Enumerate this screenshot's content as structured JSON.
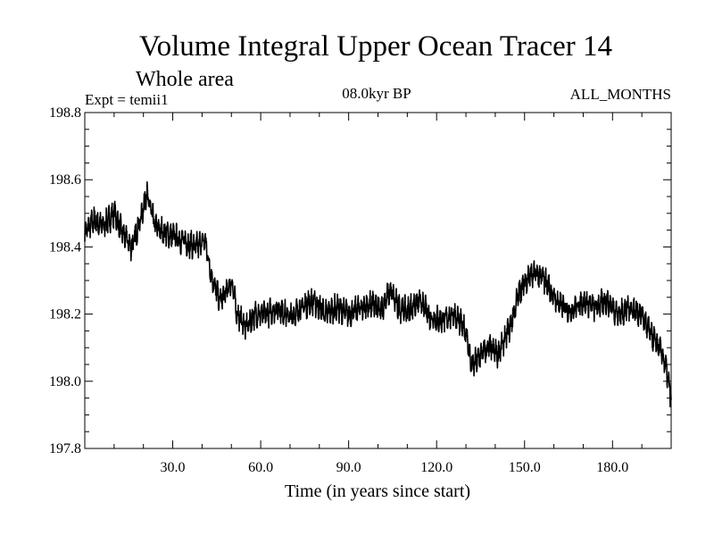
{
  "chart_data": {
    "type": "line",
    "title": "Volume Integral Upper Ocean Tracer 14",
    "subtitle": "Whole area",
    "experiment": "Expt = temii1",
    "period": "08.0kyr BP",
    "months": "ALL_MONTHS",
    "xlabel": "Time (in years since start)",
    "ylabel": "",
    "xlim": [
      0,
      200
    ],
    "ylim": [
      197.8,
      198.8
    ],
    "xticks": [
      {
        "value": 30,
        "label": "30.0"
      },
      {
        "value": 60,
        "label": "60.0"
      },
      {
        "value": 90,
        "label": "90.0"
      },
      {
        "value": 120,
        "label": "120.0"
      },
      {
        "value": 150,
        "label": "150.0"
      },
      {
        "value": 180,
        "label": "180.0"
      }
    ],
    "yticks": [
      {
        "value": 197.8,
        "label": "197.8"
      },
      {
        "value": 198.0,
        "label": "198.0"
      },
      {
        "value": 198.2,
        "label": "198.2"
      },
      {
        "value": 198.4,
        "label": "198.4"
      },
      {
        "value": 198.6,
        "label": "198.6"
      },
      {
        "value": 198.8,
        "label": "198.8"
      }
    ],
    "series": [
      {
        "name": "Tracer 14",
        "color": "#000000",
        "noise_amplitude": 0.035,
        "samples_per_year": 12,
        "x": [
          0,
          3,
          6,
          10,
          13,
          16,
          19,
          21,
          24,
          28,
          33,
          38,
          41,
          43,
          46,
          48,
          50,
          52,
          55,
          58,
          62,
          66,
          70,
          74,
          78,
          82,
          86,
          90,
          94,
          98,
          101,
          104,
          107,
          110,
          114,
          118,
          122,
          126,
          130,
          132,
          135,
          138,
          141,
          145,
          148,
          151,
          154,
          157,
          160,
          163,
          166,
          170,
          174,
          178,
          182,
          186,
          190,
          193,
          196,
          198,
          200
        ],
        "y": [
          198.44,
          198.48,
          198.46,
          198.5,
          198.44,
          198.4,
          198.48,
          198.56,
          198.46,
          198.44,
          198.42,
          198.4,
          198.42,
          198.32,
          198.24,
          198.26,
          198.3,
          198.2,
          198.16,
          198.2,
          198.2,
          198.22,
          198.19,
          198.22,
          198.24,
          198.2,
          198.22,
          198.2,
          198.22,
          198.23,
          198.21,
          198.27,
          198.22,
          198.21,
          198.24,
          198.19,
          198.18,
          198.2,
          198.15,
          198.04,
          198.08,
          198.1,
          198.08,
          198.16,
          198.26,
          198.31,
          198.32,
          198.3,
          198.25,
          198.22,
          198.21,
          198.24,
          198.22,
          198.24,
          198.2,
          198.22,
          198.2,
          198.14,
          198.1,
          198.05,
          197.95
        ]
      }
    ]
  }
}
